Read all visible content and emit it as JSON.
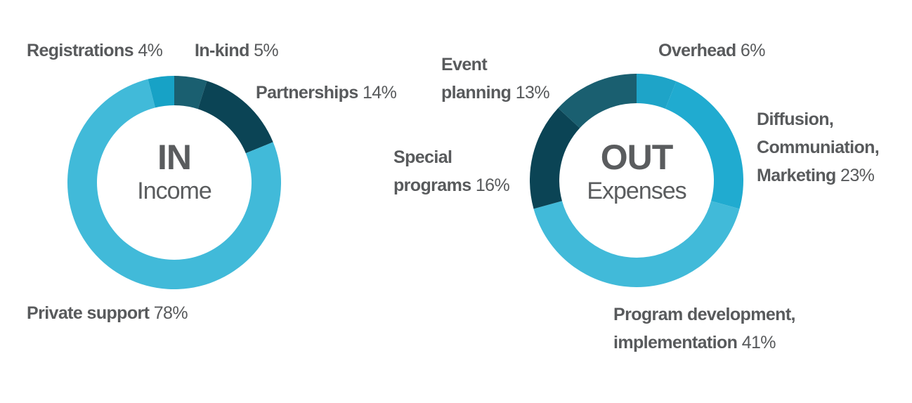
{
  "chart_data": [
    {
      "type": "pie",
      "center": {
        "primary": "IN",
        "secondary": "Income"
      },
      "slices": [
        {
          "name": "In-kind",
          "value": 5,
          "value_label": "5%",
          "color": "#1a5f70"
        },
        {
          "name": "Partnerships",
          "value": 14,
          "value_label": "14%",
          "color": "#0b4455"
        },
        {
          "name": "Private support",
          "value": 78,
          "value_label": "78%",
          "color": "#41bad9"
        },
        {
          "name": "Registrations",
          "value": 4,
          "value_label": "4%",
          "color": "#17a2c6"
        }
      ]
    },
    {
      "type": "pie",
      "center": {
        "primary": "OUT",
        "secondary": "Expenses"
      },
      "slices": [
        {
          "name": "Overhead",
          "value": 6,
          "value_label": "6%",
          "color": "#1ea4c8"
        },
        {
          "name_lines": [
            "Diffusion,",
            "Communiation,",
            "Marketing"
          ],
          "value": 23,
          "value_label": "23%",
          "color": "#20abd0"
        },
        {
          "name_lines": [
            "Program development,",
            "implementation"
          ],
          "value": 41,
          "value_label": "41%",
          "color": "#41bad9"
        },
        {
          "name_lines": [
            "Special",
            "programs"
          ],
          "value": 16,
          "value_label": "16%",
          "color": "#0b4455"
        },
        {
          "name_lines": [
            "Event",
            "planning"
          ],
          "value": 13,
          "value_label": "13%",
          "color": "#1a5f70"
        }
      ]
    }
  ]
}
